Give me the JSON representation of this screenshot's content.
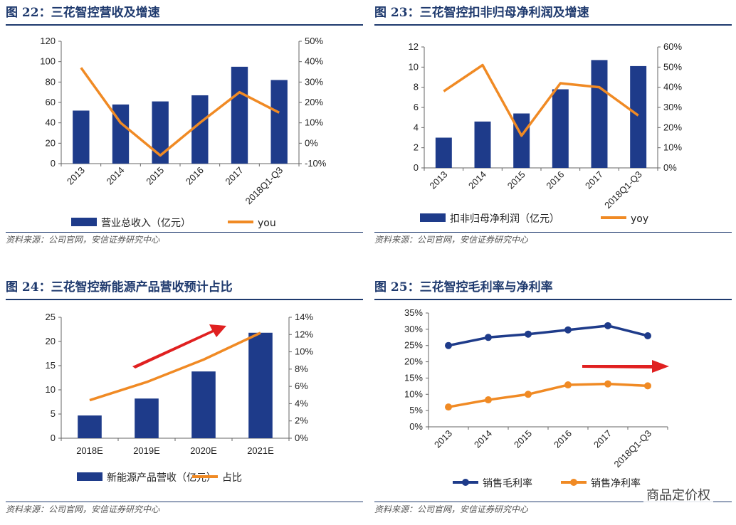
{
  "colors": {
    "bar": "#1e3b8a",
    "line": "#f08a24",
    "title": "#1f3a6e",
    "arrow": "#e02020"
  },
  "panels": [
    {
      "title": "图 22：三花智控营收及增速",
      "source": "资料来源：公司官网，安信证券研究中心",
      "legend": [
        "营业总收入（亿元）",
        "you"
      ]
    },
    {
      "title": "图 23：三花智控扣非归母净利润及增速",
      "source": "资料来源：公司官网，安信证券研究中心",
      "legend": [
        "扣非归母净利润（亿元）",
        "yoy"
      ]
    },
    {
      "title": "图 24：三花智控新能源产品营收预计占比",
      "source": "资料来源：公司官网，安信证券研究中心",
      "legend": [
        "新能源产品营收（亿元）",
        "占比"
      ]
    },
    {
      "title": "图 25：三花智控毛利率与净利率",
      "source": "资料来源：公司官网，安信证券研究中心",
      "legend": [
        "销售毛利率",
        "销售净利率"
      ]
    }
  ],
  "watermark": "商品定价权",
  "chart_data": [
    {
      "type": "bar",
      "categories": [
        "2013",
        "2014",
        "2015",
        "2016",
        "2017",
        "2018Q1-Q3"
      ],
      "series": [
        {
          "name": "营业总收入（亿元）",
          "type": "bar",
          "axis": "left",
          "values": [
            52,
            58,
            61,
            67,
            95,
            82
          ]
        },
        {
          "name": "you",
          "type": "line",
          "axis": "right",
          "values": [
            0.37,
            0.1,
            -0.06,
            0.1,
            0.25,
            0.15
          ]
        }
      ],
      "ylim": [
        0,
        120
      ],
      "yticks": [
        0,
        20,
        40,
        60,
        80,
        100,
        120
      ],
      "y2lim": [
        -0.1,
        0.5
      ],
      "y2ticks": [
        -0.1,
        0,
        0.1,
        0.2,
        0.3,
        0.4,
        0.5
      ],
      "y2_tick_labels": [
        "-10%",
        "0%",
        "10%",
        "20%",
        "30%",
        "40%",
        "50%"
      ],
      "xlabel_rotate": true
    },
    {
      "type": "bar",
      "categories": [
        "2013",
        "2014",
        "2015",
        "2016",
        "2017",
        "2018Q1-Q3"
      ],
      "series": [
        {
          "name": "扣非归母净利润（亿元）",
          "type": "bar",
          "axis": "left",
          "values": [
            3.0,
            4.6,
            5.4,
            7.8,
            10.7,
            10.1
          ]
        },
        {
          "name": "yoy",
          "type": "line",
          "axis": "right",
          "values": [
            0.38,
            0.51,
            0.16,
            0.42,
            0.4,
            0.26
          ]
        }
      ],
      "ylim": [
        0,
        12
      ],
      "yticks": [
        0,
        2,
        4,
        6,
        8,
        10,
        12
      ],
      "y2lim": [
        0,
        0.6
      ],
      "y2ticks": [
        0,
        0.1,
        0.2,
        0.3,
        0.4,
        0.5,
        0.6
      ],
      "y2_tick_labels": [
        "0%",
        "10%",
        "20%",
        "30%",
        "40%",
        "50%",
        "60%"
      ],
      "xlabel_rotate": true
    },
    {
      "type": "bar",
      "categories": [
        "2018E",
        "2019E",
        "2020E",
        "2021E"
      ],
      "series": [
        {
          "name": "新能源产品营收（亿元）",
          "type": "bar",
          "axis": "left",
          "values": [
            4.7,
            8.2,
            13.8,
            21.8
          ]
        },
        {
          "name": "占比",
          "type": "line",
          "axis": "right",
          "values": [
            0.044,
            0.065,
            0.091,
            0.122
          ]
        }
      ],
      "ylim": [
        0,
        25
      ],
      "yticks": [
        0,
        5,
        10,
        15,
        20,
        25
      ],
      "y2lim": [
        0,
        0.14
      ],
      "y2ticks": [
        0,
        0.02,
        0.04,
        0.06,
        0.08,
        0.1,
        0.12,
        0.14
      ],
      "y2_tick_labels": [
        "0%",
        "2%",
        "4%",
        "6%",
        "8%",
        "10%",
        "12%",
        "14%"
      ],
      "xlabel_rotate": false
    },
    {
      "type": "line",
      "categories": [
        "2013",
        "2014",
        "2015",
        "2016",
        "2017",
        "2018Q1-Q3"
      ],
      "series": [
        {
          "name": "销售毛利率",
          "type": "line",
          "axis": "left",
          "color": "#1e3b8a",
          "values": [
            0.25,
            0.275,
            0.285,
            0.298,
            0.311,
            0.28
          ]
        },
        {
          "name": "销售净利率",
          "type": "line",
          "axis": "left",
          "color": "#f08a24",
          "values": [
            0.061,
            0.083,
            0.1,
            0.129,
            0.132,
            0.126
          ]
        }
      ],
      "ylim": [
        0,
        0.35
      ],
      "yticks": [
        0,
        0.05,
        0.1,
        0.15,
        0.2,
        0.25,
        0.3,
        0.35
      ],
      "y_tick_labels": [
        "0%",
        "5%",
        "10%",
        "15%",
        "20%",
        "25%",
        "30%",
        "35%"
      ],
      "xlabel_rotate": true
    }
  ]
}
